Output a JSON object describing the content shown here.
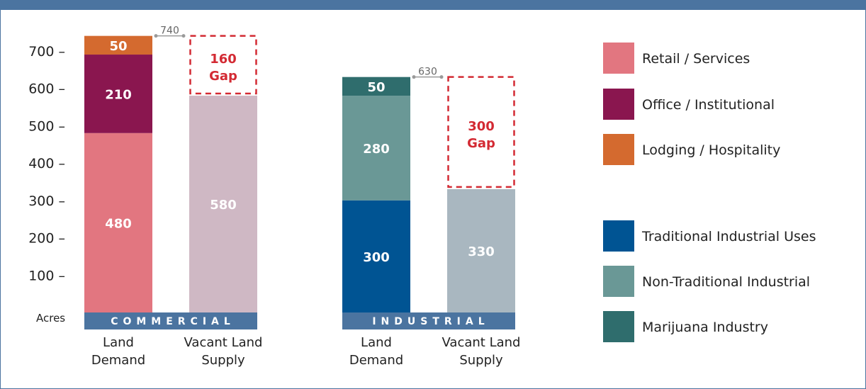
{
  "chart_data": {
    "type": "bar",
    "stacked": true,
    "ylabel": "Acres",
    "ylim": [
      0,
      750
    ],
    "yticks": [
      100,
      200,
      300,
      400,
      500,
      600,
      700
    ],
    "grid": false,
    "legend_position": "right",
    "groups": [
      {
        "name": "COMMERCIAL",
        "color": "#4b74a0",
        "total_label": "740",
        "bars": [
          {
            "label": [
              "Land",
              "Demand"
            ],
            "segments": [
              {
                "series": "Retail / Services",
                "value": 480,
                "label": "480",
                "color": "#e27680"
              },
              {
                "series": "Office / Institutional",
                "value": 210,
                "label": "210",
                "color": "#8a164f"
              },
              {
                "series": "Lodging / Hospitality",
                "value": 50,
                "label": "50",
                "color": "#d46a2f"
              }
            ]
          },
          {
            "label": [
              "Vacant Land",
              "Supply"
            ],
            "segments": [
              {
                "series": "Vacant Land Supply",
                "value": 580,
                "label": "580",
                "color": "#cfb8c4"
              }
            ],
            "gap": {
              "value": 160,
              "label": [
                "160",
                "Gap"
              ]
            }
          }
        ]
      },
      {
        "name": "INDUSTRIAL",
        "color": "#4b74a0",
        "total_label": "630",
        "bars": [
          {
            "label": [
              "Land",
              "Demand"
            ],
            "segments": [
              {
                "series": "Traditional Industrial Uses",
                "value": 300,
                "label": "300",
                "color": "#005493"
              },
              {
                "series": "Non-Traditional Industrial",
                "value": 280,
                "label": "280",
                "color": "#6a9896"
              },
              {
                "series": "Marijuana Industry",
                "value": 50,
                "label": "50",
                "color": "#2f6d6d"
              }
            ]
          },
          {
            "label": [
              "Vacant Land",
              "Supply"
            ],
            "segments": [
              {
                "series": "Vacant Land Supply",
                "value": 330,
                "label": "330",
                "color": "#a9b7c0"
              }
            ],
            "gap": {
              "value": 300,
              "label": [
                "300",
                "Gap"
              ]
            }
          }
        ]
      }
    ],
    "legend": [
      {
        "label": "Retail / Services",
        "color": "#e27680"
      },
      {
        "label": "Office / Institutional",
        "color": "#8a164f"
      },
      {
        "label": "Lodging / Hospitality",
        "color": "#d46a2f"
      },
      {
        "label": "Traditional Industrial Uses",
        "color": "#005493"
      },
      {
        "label": "Non-Traditional Industrial",
        "color": "#6a9896"
      },
      {
        "label": "Marijuana Industry",
        "color": "#2f6d6d"
      }
    ]
  }
}
